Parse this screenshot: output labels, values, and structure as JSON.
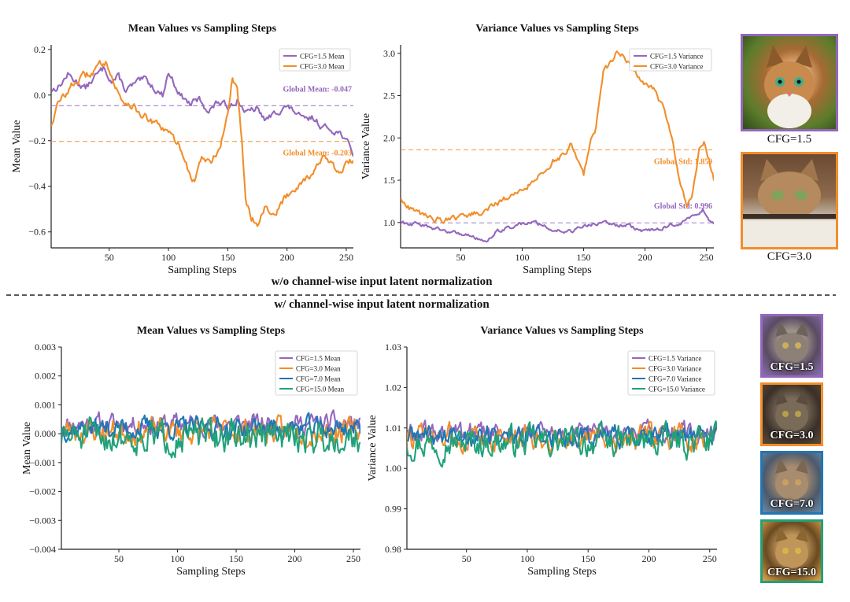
{
  "colors": {
    "cfg1_5": "#9467bd",
    "cfg3_0": "#f28e2b",
    "cfg7_0": "#1f77b4",
    "cfg15_0": "#21a17a"
  },
  "sections": {
    "top_label": "w/o channel-wise input latent normalization",
    "bottom_label": "w/ channel-wise input latent normalization"
  },
  "thumbnails_top": [
    {
      "caption": "CFG=1.5",
      "color_key": "cfg1_5",
      "icon": "cat-portrait-icon"
    },
    {
      "caption": "CFG=3.0",
      "color_key": "cfg3_0",
      "icon": "cat-portrait-icon"
    }
  ],
  "thumbnails_bottom": [
    {
      "caption": "CFG=1.5",
      "color_key": "cfg1_5",
      "icon": "cat-portrait-icon"
    },
    {
      "caption": "CFG=3.0",
      "color_key": "cfg3_0",
      "icon": "cat-portrait-icon"
    },
    {
      "caption": "CFG=7.0",
      "color_key": "cfg7_0",
      "icon": "cat-portrait-icon"
    },
    {
      "caption": "CFG=15.0",
      "color_key": "cfg15_0",
      "icon": "cat-portrait-icon"
    }
  ],
  "chart_data": [
    {
      "id": "top-mean",
      "type": "line",
      "title": "Mean Values vs Sampling Steps",
      "xlabel": "Sampling Steps",
      "ylabel": "Mean Value",
      "xlim": [
        1,
        256
      ],
      "ylim": [
        -0.67,
        0.22
      ],
      "xticks": [
        50,
        100,
        150,
        200,
        250
      ],
      "yticks": [
        0.2,
        0.0,
        -0.2,
        -0.4,
        -0.6
      ],
      "ytick_labels": [
        "0.2",
        "0.0",
        "−0.2",
        "−0.4",
        "−0.6"
      ],
      "legend": "top-right",
      "series": [
        {
          "name": "CFG=1.5 Mean",
          "color_key": "cfg1_5",
          "anchors": [
            [
              1,
              0.02
            ],
            [
              8,
              0.04
            ],
            [
              15,
              0.09
            ],
            [
              22,
              0.06
            ],
            [
              30,
              0.03
            ],
            [
              38,
              0.08
            ],
            [
              46,
              0.12
            ],
            [
              52,
              0.06
            ],
            [
              58,
              0.08
            ],
            [
              64,
              0.02
            ],
            [
              72,
              0.05
            ],
            [
              80,
              0.07
            ],
            [
              88,
              0.03
            ],
            [
              95,
              0.0
            ],
            [
              100,
              0.1
            ],
            [
              104,
              0.06
            ],
            [
              110,
              0.0
            ],
            [
              118,
              -0.04
            ],
            [
              126,
              -0.02
            ],
            [
              134,
              -0.07
            ],
            [
              142,
              -0.03
            ],
            [
              150,
              -0.05
            ],
            [
              158,
              -0.02
            ],
            [
              166,
              -0.08
            ],
            [
              174,
              -0.06
            ],
            [
              182,
              -0.11
            ],
            [
              190,
              -0.08
            ],
            [
              198,
              -0.05
            ],
            [
              206,
              -0.07
            ],
            [
              214,
              -0.11
            ],
            [
              222,
              -0.1
            ],
            [
              230,
              -0.14
            ],
            [
              238,
              -0.15
            ],
            [
              246,
              -0.17
            ],
            [
              252,
              -0.22
            ],
            [
              256,
              -0.26
            ]
          ],
          "noise": 0.012,
          "global": {
            "value": -0.047,
            "label": "Global Mean: -0.047"
          }
        },
        {
          "name": "CFG=3.0 Mean",
          "color_key": "cfg3_0",
          "anchors": [
            [
              1,
              -0.13
            ],
            [
              6,
              -0.05
            ],
            [
              12,
              0.0
            ],
            [
              20,
              0.05
            ],
            [
              28,
              0.08
            ],
            [
              36,
              0.1
            ],
            [
              44,
              0.14
            ],
            [
              48,
              0.15
            ],
            [
              54,
              0.05
            ],
            [
              60,
              -0.02
            ],
            [
              68,
              -0.04
            ],
            [
              76,
              -0.08
            ],
            [
              86,
              -0.12
            ],
            [
              96,
              -0.15
            ],
            [
              106,
              -0.2
            ],
            [
              112,
              -0.25
            ],
            [
              118,
              -0.35
            ],
            [
              122,
              -0.38
            ],
            [
              128,
              -0.27
            ],
            [
              136,
              -0.3
            ],
            [
              144,
              -0.22
            ],
            [
              150,
              -0.08
            ],
            [
              154,
              0.08
            ],
            [
              158,
              0.02
            ],
            [
              162,
              -0.2
            ],
            [
              165,
              -0.45
            ],
            [
              170,
              -0.54
            ],
            [
              176,
              -0.56
            ],
            [
              182,
              -0.48
            ],
            [
              190,
              -0.53
            ],
            [
              198,
              -0.45
            ],
            [
              206,
              -0.41
            ],
            [
              214,
              -0.37
            ],
            [
              222,
              -0.34
            ],
            [
              230,
              -0.27
            ],
            [
              238,
              -0.31
            ],
            [
              244,
              -0.35
            ],
            [
              250,
              -0.3
            ],
            [
              256,
              -0.29
            ]
          ],
          "noise": 0.014,
          "global": {
            "value": -0.203,
            "label": "Global Mean: -0.203"
          }
        }
      ]
    },
    {
      "id": "top-var",
      "type": "line",
      "title": "Variance Values vs Sampling Steps",
      "xlabel": "Sampling Steps",
      "ylabel": "Variance Value",
      "xlim": [
        1,
        256
      ],
      "ylim": [
        0.7,
        3.1
      ],
      "xticks": [
        50,
        100,
        150,
        200,
        250
      ],
      "yticks": [
        1.0,
        1.5,
        2.0,
        2.5,
        3.0
      ],
      "ytick_labels": [
        "1.0",
        "1.5",
        "2.0",
        "2.5",
        "3.0"
      ],
      "legend": "top-right",
      "series": [
        {
          "name": "CFG=1.5 Variance",
          "color_key": "cfg1_5",
          "anchors": [
            [
              1,
              1.0
            ],
            [
              15,
              0.98
            ],
            [
              30,
              0.92
            ],
            [
              45,
              0.88
            ],
            [
              60,
              0.84
            ],
            [
              70,
              0.78
            ],
            [
              80,
              0.9
            ],
            [
              95,
              0.97
            ],
            [
              110,
              1.0
            ],
            [
              125,
              0.92
            ],
            [
              140,
              0.9
            ],
            [
              155,
              0.97
            ],
            [
              170,
              0.99
            ],
            [
              185,
              0.97
            ],
            [
              200,
              0.9
            ],
            [
              215,
              0.94
            ],
            [
              230,
              1.0
            ],
            [
              240,
              1.08
            ],
            [
              247,
              1.15
            ],
            [
              252,
              1.03
            ],
            [
              256,
              0.98
            ]
          ],
          "noise": 0.02,
          "global": {
            "value": 0.996,
            "label": "Global Std: 0.996"
          }
        },
        {
          "name": "CFG=3.0 Variance",
          "color_key": "cfg3_0",
          "anchors": [
            [
              1,
              1.28
            ],
            [
              10,
              1.15
            ],
            [
              20,
              1.08
            ],
            [
              35,
              1.02
            ],
            [
              50,
              1.05
            ],
            [
              65,
              1.12
            ],
            [
              80,
              1.22
            ],
            [
              95,
              1.35
            ],
            [
              110,
              1.5
            ],
            [
              125,
              1.72
            ],
            [
              135,
              1.82
            ],
            [
              140,
              1.93
            ],
            [
              145,
              1.7
            ],
            [
              150,
              1.55
            ],
            [
              155,
              1.95
            ],
            [
              160,
              2.1
            ],
            [
              166,
              2.75
            ],
            [
              172,
              2.9
            ],
            [
              178,
              3.02
            ],
            [
              184,
              2.95
            ],
            [
              192,
              2.8
            ],
            [
              200,
              2.62
            ],
            [
              208,
              2.55
            ],
            [
              215,
              2.35
            ],
            [
              222,
              2.0
            ],
            [
              228,
              1.5
            ],
            [
              234,
              1.2
            ],
            [
              238,
              1.3
            ],
            [
              244,
              1.85
            ],
            [
              248,
              1.97
            ],
            [
              252,
              1.75
            ],
            [
              256,
              1.52
            ]
          ],
          "noise": 0.03,
          "global": {
            "value": 1.859,
            "label": "Global Std: 1.859"
          }
        }
      ]
    },
    {
      "id": "bottom-mean",
      "type": "line",
      "title": "Mean Values vs Sampling Steps",
      "xlabel": "Sampling Steps",
      "ylabel": "Mean Value",
      "xlim": [
        1,
        256
      ],
      "ylim": [
        -0.004,
        0.003
      ],
      "xticks": [
        50,
        100,
        150,
        200,
        250
      ],
      "yticks": [
        0.003,
        0.002,
        0.001,
        0.0,
        -0.001,
        -0.002,
        -0.003,
        -0.004
      ],
      "ytick_labels": [
        "0.003",
        "0.002",
        "0.001",
        "0.000",
        "−0.001",
        "−0.002",
        "−0.003",
        "−0.004"
      ],
      "legend": "top-right",
      "series": [
        {
          "name": "CFG=1.5 Mean",
          "color_key": "cfg1_5",
          "base": 0.00035,
          "noise": 0.00028,
          "seed": 11
        },
        {
          "name": "CFG=3.0 Mean",
          "color_key": "cfg3_0",
          "base": 0.0001,
          "noise": 0.00035,
          "seed": 23
        },
        {
          "name": "CFG=7.0 Mean",
          "color_key": "cfg7_0",
          "base": 0.0002,
          "noise": 0.0003,
          "seed": 37
        },
        {
          "name": "CFG=15.0 Mean",
          "color_key": "cfg15_0",
          "base": -0.0001,
          "noise": 0.00045,
          "seed": 51
        }
      ]
    },
    {
      "id": "bottom-var",
      "type": "line",
      "title": "Variance Values vs Sampling Steps",
      "xlabel": "Sampling Steps",
      "ylabel": "Variance Value",
      "xlim": [
        1,
        256
      ],
      "ylim": [
        0.98,
        1.03
      ],
      "xticks": [
        50,
        100,
        150,
        200,
        250
      ],
      "yticks": [
        0.98,
        0.99,
        1.0,
        1.01,
        1.02,
        1.03
      ],
      "ytick_labels": [
        "0.98",
        "0.99",
        "1.00",
        "1.01",
        "1.02",
        "1.03"
      ],
      "legend": "top-right",
      "series": [
        {
          "name": "CFG=1.5 Variance",
          "color_key": "cfg1_5",
          "base": 1.0085,
          "noise": 0.0022,
          "seed": 61
        },
        {
          "name": "CFG=3.0 Variance",
          "color_key": "cfg3_0",
          "base": 1.0075,
          "noise": 0.0025,
          "seed": 73
        },
        {
          "name": "CFG=7.0 Variance",
          "color_key": "cfg7_0",
          "base": 1.008,
          "noise": 0.0022,
          "seed": 89
        },
        {
          "name": "CFG=15.0 Variance",
          "color_key": "cfg15_0",
          "base": 1.0065,
          "noise": 0.003,
          "seed": 97
        }
      ]
    }
  ]
}
